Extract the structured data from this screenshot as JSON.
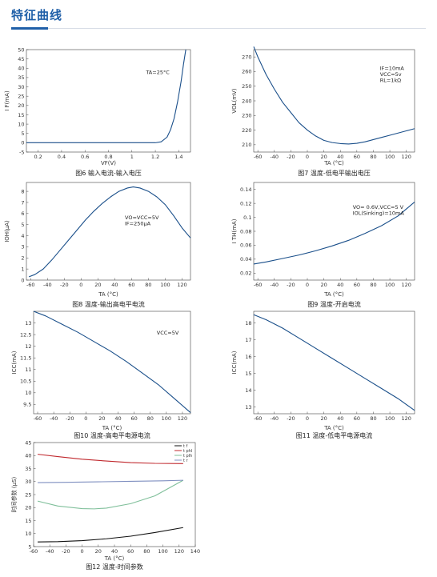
{
  "page": {
    "section_title": "特征曲线"
  },
  "chart_data": [
    {
      "id": "fig6",
      "type": "line",
      "caption": "图6 输入电流-输入电压",
      "xlabel": "VF(V)",
      "ylabel": "I F(mA)",
      "xlim": [
        0.1,
        1.5
      ],
      "ylim": [
        -5,
        50
      ],
      "xticks": [
        0.2,
        0.4,
        0.6,
        0.8,
        1.0,
        1.2,
        1.4
      ],
      "xticklabels": [
        "0.2",
        "0.4",
        "0.6",
        "0.8",
        "1",
        "1.2",
        "1.4"
      ],
      "yticks": [
        -5,
        0,
        5,
        10,
        15,
        20,
        25,
        30,
        35,
        40,
        45,
        50
      ],
      "grid": false,
      "annotations": [
        {
          "lines": [
            "TA=25°C"
          ],
          "x": 1.12,
          "y": 37
        }
      ],
      "series": [
        {
          "color": "#1a4f8a",
          "values": [
            [
              0.1,
              0
            ],
            [
              0.3,
              0
            ],
            [
              0.5,
              0
            ],
            [
              0.7,
              0
            ],
            [
              0.9,
              0
            ],
            [
              1.1,
              0
            ],
            [
              1.2,
              0
            ],
            [
              1.25,
              0.5
            ],
            [
              1.3,
              3
            ],
            [
              1.33,
              7
            ],
            [
              1.36,
              13
            ],
            [
              1.39,
              22
            ],
            [
              1.42,
              33
            ],
            [
              1.44,
              42
            ],
            [
              1.46,
              50
            ]
          ]
        }
      ]
    },
    {
      "id": "fig7",
      "type": "line",
      "caption": "图7 温度-低电平输出电压",
      "xlabel": "TA (°C)",
      "ylabel": "VOL(mV)",
      "xlim": [
        -65,
        130
      ],
      "ylim": [
        205,
        275
      ],
      "xticks": [
        -60,
        -40,
        -20,
        0,
        20,
        40,
        60,
        80,
        100,
        120
      ],
      "yticks": [
        210,
        220,
        230,
        240,
        250,
        260,
        270
      ],
      "grid": false,
      "annotations": [
        {
          "lines": [
            "IF=10mA",
            "VCC=5v",
            "RL=1kΩ"
          ],
          "x": 88,
          "y": 261
        }
      ],
      "series": [
        {
          "color": "#1a4f8a",
          "values": [
            [
              -65,
              277
            ],
            [
              -60,
              270
            ],
            [
              -50,
              258
            ],
            [
              -40,
              248
            ],
            [
              -30,
              239
            ],
            [
              -20,
              232
            ],
            [
              -10,
              225
            ],
            [
              0,
              220
            ],
            [
              10,
              216
            ],
            [
              20,
              213
            ],
            [
              30,
              211.5
            ],
            [
              40,
              210.8
            ],
            [
              50,
              210.5
            ],
            [
              60,
              211
            ],
            [
              70,
              212
            ],
            [
              80,
              213.5
            ],
            [
              90,
              215
            ],
            [
              100,
              216.5
            ],
            [
              110,
              218
            ],
            [
              120,
              219.5
            ],
            [
              130,
              221
            ]
          ]
        }
      ]
    },
    {
      "id": "fig8",
      "type": "line",
      "caption": "图8 温度-输出高电平电流",
      "xlabel": "TA (°C)",
      "ylabel": "IOH(μA)",
      "xlim": [
        -65,
        130
      ],
      "ylim": [
        0,
        8.8
      ],
      "xticks": [
        -60,
        -40,
        -20,
        0,
        20,
        40,
        60,
        80,
        100,
        120
      ],
      "yticks": [
        0,
        1,
        2,
        3,
        4,
        5,
        6,
        7,
        8
      ],
      "grid": false,
      "annotations": [
        {
          "lines": [
            "VO=VCC=5V",
            "IF=250μA"
          ],
          "x": 52,
          "y": 5.5
        }
      ],
      "series": [
        {
          "color": "#1a4f8a",
          "values": [
            [
              -62,
              0.3
            ],
            [
              -55,
              0.5
            ],
            [
              -45,
              1.0
            ],
            [
              -35,
              1.8
            ],
            [
              -25,
              2.7
            ],
            [
              -15,
              3.6
            ],
            [
              -5,
              4.5
            ],
            [
              5,
              5.4
            ],
            [
              15,
              6.2
            ],
            [
              25,
              6.9
            ],
            [
              35,
              7.5
            ],
            [
              45,
              8.0
            ],
            [
              55,
              8.3
            ],
            [
              62,
              8.4
            ],
            [
              70,
              8.3
            ],
            [
              80,
              8.0
            ],
            [
              90,
              7.5
            ],
            [
              100,
              6.8
            ],
            [
              110,
              5.8
            ],
            [
              120,
              4.7
            ],
            [
              130,
              3.8
            ]
          ]
        }
      ]
    },
    {
      "id": "fig9",
      "type": "line",
      "caption": "图9 温度-开启电流",
      "xlabel": "TA (°C)",
      "ylabel": "I TH(mA)",
      "xlim": [
        -65,
        130
      ],
      "ylim": [
        0.01,
        0.15
      ],
      "xticks": [
        -60,
        -40,
        -20,
        0,
        20,
        40,
        60,
        80,
        100,
        120
      ],
      "yticks": [
        0.02,
        0.04,
        0.06,
        0.08,
        0.1,
        0.12,
        0.14
      ],
      "grid": false,
      "annotations": [
        {
          "lines": [
            "VO= 0.6V,VCC=5 V",
            "IOL(Sinking)=10mA"
          ],
          "x": 55,
          "y": 0.112
        }
      ],
      "series": [
        {
          "color": "#1a4f8a",
          "values": [
            [
              -65,
              0.033
            ],
            [
              -50,
              0.036
            ],
            [
              -30,
              0.041
            ],
            [
              -10,
              0.046
            ],
            [
              10,
              0.052
            ],
            [
              30,
              0.059
            ],
            [
              50,
              0.067
            ],
            [
              70,
              0.077
            ],
            [
              90,
              0.088
            ],
            [
              110,
              0.102
            ],
            [
              130,
              0.122
            ]
          ]
        }
      ]
    },
    {
      "id": "fig10",
      "type": "line",
      "caption": "图10 温度-高电平电源电流",
      "xlabel": "TA (°C)",
      "ylabel": "ICC(mA)",
      "xlim": [
        -65,
        130
      ],
      "ylim": [
        9.1,
        13.5
      ],
      "xticks": [
        -60,
        -40,
        -20,
        0,
        20,
        40,
        60,
        80,
        100,
        120
      ],
      "yticks": [
        9.5,
        10,
        10.5,
        11,
        11.5,
        12,
        12.5,
        13
      ],
      "grid": false,
      "annotations": [
        {
          "lines": [
            "VCC=5V"
          ],
          "x": 88,
          "y": 12.5
        }
      ],
      "series": [
        {
          "color": "#1a4f8a",
          "values": [
            [
              -65,
              13.5
            ],
            [
              -50,
              13.3
            ],
            [
              -30,
              12.95
            ],
            [
              -10,
              12.6
            ],
            [
              10,
              12.2
            ],
            [
              30,
              11.8
            ],
            [
              50,
              11.35
            ],
            [
              70,
              10.85
            ],
            [
              90,
              10.35
            ],
            [
              110,
              9.75
            ],
            [
              130,
              9.15
            ]
          ]
        }
      ]
    },
    {
      "id": "fig11",
      "type": "line",
      "caption": "图11 温度-低电平电源电流",
      "xlabel": "TA (°C)",
      "ylabel": "ICC(mA)",
      "xlim": [
        -65,
        130
      ],
      "ylim": [
        12.6,
        18.7
      ],
      "xticks": [
        -60,
        -40,
        -20,
        0,
        20,
        40,
        60,
        80,
        100,
        120
      ],
      "yticks": [
        13,
        14,
        15,
        16,
        17,
        18
      ],
      "grid": false,
      "annotations": [],
      "series": [
        {
          "color": "#1a4f8a",
          "values": [
            [
              -65,
              18.5
            ],
            [
              -50,
              18.2
            ],
            [
              -30,
              17.7
            ],
            [
              -10,
              17.1
            ],
            [
              10,
              16.5
            ],
            [
              30,
              15.9
            ],
            [
              50,
              15.3
            ],
            [
              70,
              14.7
            ],
            [
              90,
              14.1
            ],
            [
              110,
              13.5
            ],
            [
              130,
              12.8
            ]
          ]
        }
      ]
    },
    {
      "id": "fig12",
      "type": "line",
      "caption": "图12 温度-时间参数",
      "xlabel": "TA (°C)",
      "ylabel": "时间参数 (μS)",
      "xlim": [
        -60,
        140
      ],
      "ylim": [
        5,
        45
      ],
      "xticks": [
        -60,
        -40,
        -20,
        0,
        20,
        40,
        60,
        80,
        100,
        120,
        140
      ],
      "yticks": [
        5,
        10,
        15,
        20,
        25,
        30,
        35,
        40,
        45
      ],
      "grid": false,
      "legend": "top-right",
      "annotations": [],
      "series": [
        {
          "name": "t f",
          "color": "#111111",
          "values": [
            [
              -55,
              6.8
            ],
            [
              -30,
              6.9
            ],
            [
              0,
              7.3
            ],
            [
              30,
              8.0
            ],
            [
              60,
              9.0
            ],
            [
              90,
              10.4
            ],
            [
              125,
              12.3
            ]
          ]
        },
        {
          "name": "t phl",
          "color": "#c0282d",
          "values": [
            [
              -55,
              40.5
            ],
            [
              -30,
              39.6
            ],
            [
              0,
              38.6
            ],
            [
              30,
              37.9
            ],
            [
              60,
              37.3
            ],
            [
              90,
              37.0
            ],
            [
              125,
              36.9
            ]
          ]
        },
        {
          "name": "t plh",
          "color": "#7fbf9a",
          "values": [
            [
              -55,
              22.5
            ],
            [
              -30,
              20.6
            ],
            [
              0,
              19.6
            ],
            [
              15,
              19.5
            ],
            [
              30,
              19.8
            ],
            [
              60,
              21.5
            ],
            [
              90,
              24.5
            ],
            [
              125,
              30.5
            ]
          ]
        },
        {
          "name": "t r",
          "color": "#7f8fc0",
          "values": [
            [
              -55,
              29.6
            ],
            [
              -20,
              29.7
            ],
            [
              20,
              29.9
            ],
            [
              60,
              30.1
            ],
            [
              100,
              30.3
            ],
            [
              125,
              30.5
            ]
          ]
        }
      ]
    }
  ]
}
